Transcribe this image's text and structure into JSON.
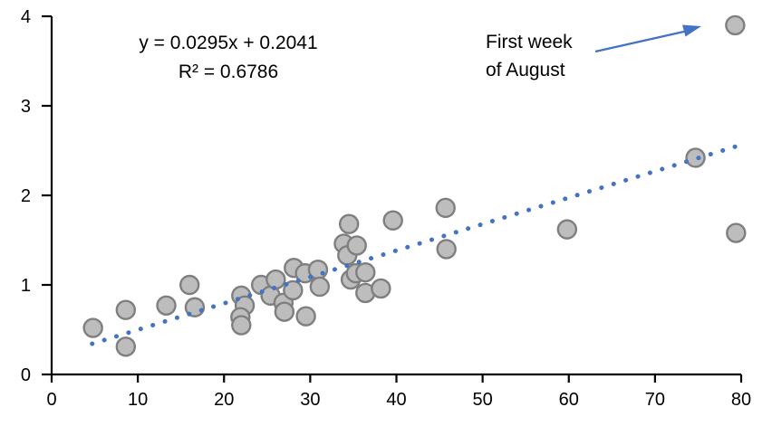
{
  "chart_data": {
    "type": "scatter",
    "title": "",
    "xlabel": "",
    "ylabel": "",
    "xlim": [
      0,
      80
    ],
    "ylim": [
      0,
      4
    ],
    "x_ticks": [
      0,
      10,
      20,
      30,
      40,
      50,
      60,
      70,
      80
    ],
    "y_ticks": [
      0,
      1,
      2,
      3,
      4
    ],
    "grid": false,
    "legend": false,
    "equation": {
      "line1": "y = 0.0295x + 0.2041",
      "line2": "R² = 0.6786"
    },
    "annotation": {
      "line1": "First week",
      "line2": "of August",
      "target_point": [
        79.3,
        3.9
      ]
    },
    "points": [
      [
        4.8,
        0.52
      ],
      [
        8.6,
        0.72
      ],
      [
        8.6,
        0.31
      ],
      [
        13.3,
        0.77
      ],
      [
        16.0,
        1.0
      ],
      [
        16.6,
        0.75
      ],
      [
        22.0,
        0.88
      ],
      [
        22.4,
        0.77
      ],
      [
        21.9,
        0.64
      ],
      [
        22.0,
        0.55
      ],
      [
        24.3,
        1.0
      ],
      [
        25.4,
        0.88
      ],
      [
        26.0,
        1.06
      ],
      [
        26.9,
        0.8
      ],
      [
        27.0,
        0.7
      ],
      [
        28.0,
        0.94
      ],
      [
        28.1,
        1.19
      ],
      [
        29.4,
        1.13
      ],
      [
        29.5,
        0.65
      ],
      [
        30.9,
        1.17
      ],
      [
        31.1,
        0.98
      ],
      [
        33.9,
        1.46
      ],
      [
        34.3,
        1.33
      ],
      [
        34.5,
        1.68
      ],
      [
        34.7,
        1.06
      ],
      [
        35.3,
        1.13
      ],
      [
        35.4,
        1.44
      ],
      [
        36.4,
        1.14
      ],
      [
        36.4,
        0.91
      ],
      [
        38.2,
        0.96
      ],
      [
        39.6,
        1.72
      ],
      [
        45.7,
        1.86
      ],
      [
        45.8,
        1.4
      ],
      [
        59.8,
        1.62
      ],
      [
        74.7,
        2.42
      ],
      [
        79.3,
        3.9
      ],
      [
        79.4,
        1.58
      ]
    ],
    "trendline": {
      "slope": 0.0295,
      "intercept": 0.2041,
      "x_start": 4.7,
      "x_end": 79.5,
      "style": "dotted"
    },
    "colors": {
      "trend": "#4472C4",
      "arrow": "#4472C4",
      "marker_fill": "#BDBDBD",
      "marker_stroke": "#7F7F7F",
      "axis": "#000000",
      "text": "#000000"
    }
  }
}
